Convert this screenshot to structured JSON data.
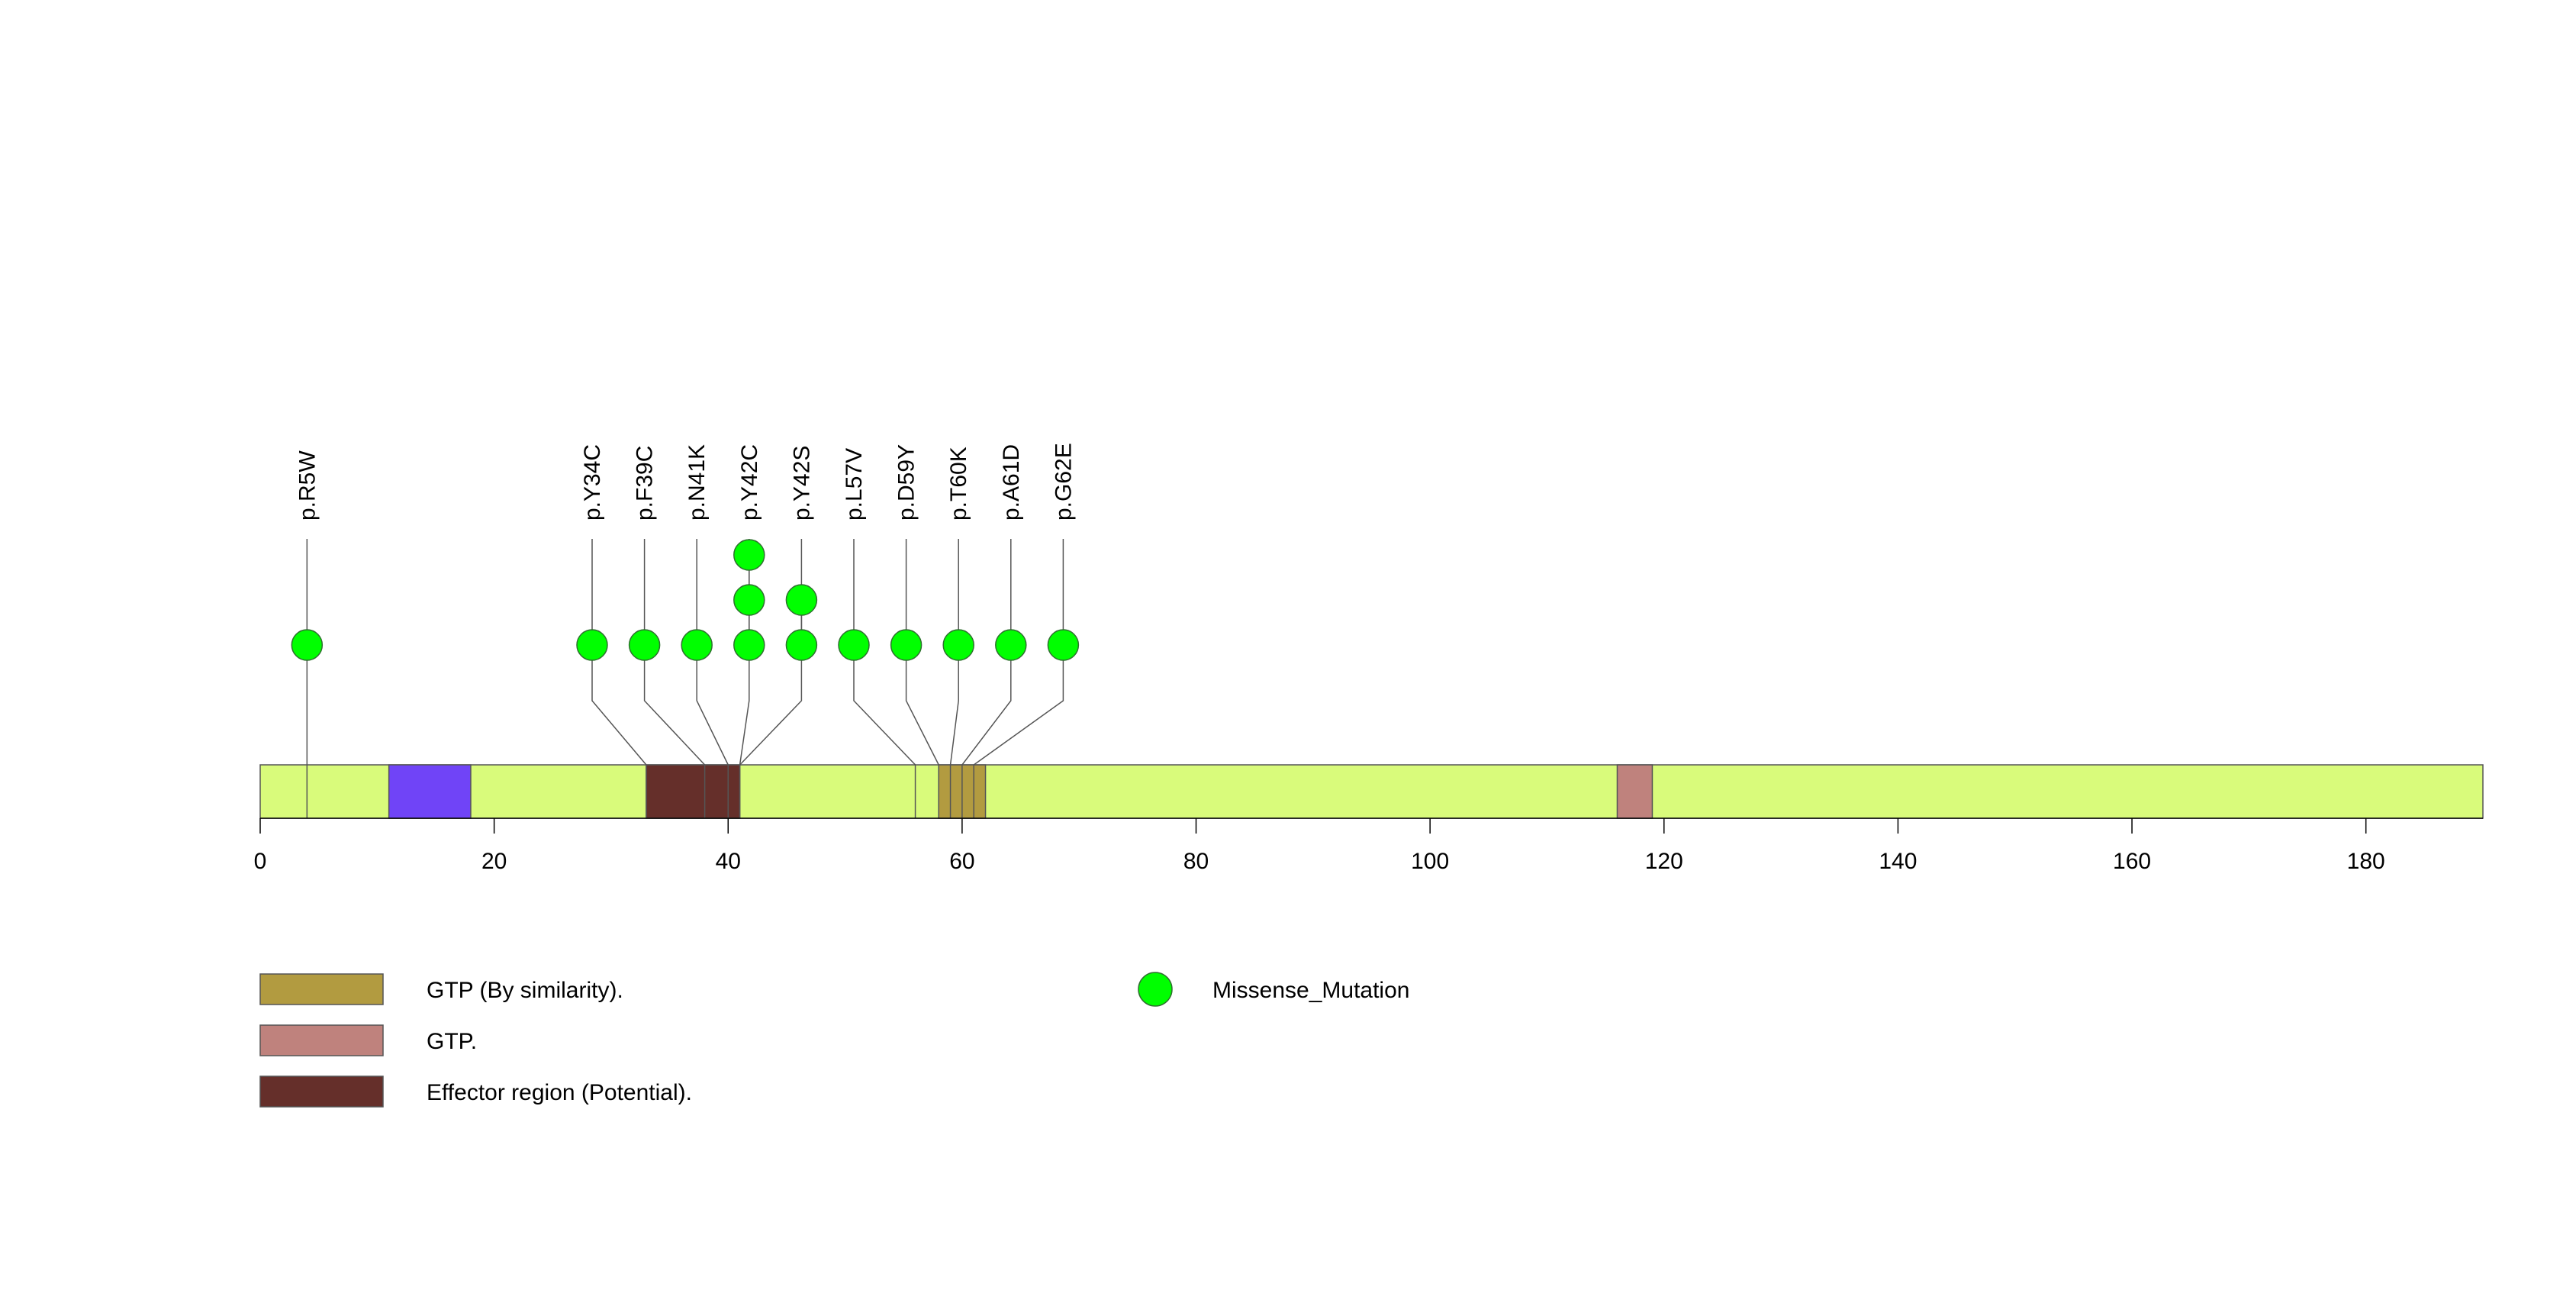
{
  "chart_data": {
    "type": "lollipop",
    "protein_length": 190,
    "axis": {
      "xlim": [
        0,
        190
      ],
      "ticks": [
        0,
        20,
        40,
        60,
        80,
        100,
        120,
        140,
        160,
        180
      ],
      "tick_labels": [
        "0",
        "20",
        "40",
        "60",
        "80",
        "100",
        "120",
        "140",
        "160",
        "180"
      ]
    },
    "backbone_color": "#d9fb7b",
    "domains": [
      {
        "start": 11,
        "end": 18,
        "color": "#7044f7",
        "label": ""
      },
      {
        "start": 33,
        "end": 41,
        "color": "#652f2a",
        "label": "Effector region (Potential)."
      },
      {
        "start": 58,
        "end": 62,
        "color": "#b29b40",
        "label": "GTP (By similarity)."
      },
      {
        "start": 116,
        "end": 119,
        "color": "#bf827d",
        "label": "GTP."
      }
    ],
    "site_lines": [
      4,
      33,
      38,
      40,
      41,
      56,
      58,
      59,
      60,
      61
    ],
    "mutations": [
      {
        "label": "p.R5W",
        "position": 4,
        "count": 1
      },
      {
        "label": "p.Y34C",
        "position": 33,
        "count": 1
      },
      {
        "label": "p.F39C",
        "position": 38,
        "count": 1
      },
      {
        "label": "p.N41K",
        "position": 40,
        "count": 1
      },
      {
        "label": "p.Y42C",
        "position": 41,
        "count": 3
      },
      {
        "label": "p.Y42S",
        "position": 41,
        "count": 2
      },
      {
        "label": "p.L57V",
        "position": 56,
        "count": 1
      },
      {
        "label": "p.D59Y",
        "position": 58,
        "count": 1
      },
      {
        "label": "p.T60K",
        "position": 59,
        "count": 1
      },
      {
        "label": "p.A61D",
        "position": 60,
        "count": 1
      },
      {
        "label": "p.G62E",
        "position": 61,
        "count": 1
      }
    ],
    "mutation_color": "#00ff00",
    "legend": {
      "domains": [
        {
          "label": "GTP (By similarity).",
          "color": "#b29b40"
        },
        {
          "label": "GTP.",
          "color": "#bf827d"
        },
        {
          "label": "Effector region (Potential).",
          "color": "#652f2a"
        }
      ],
      "mutation_types": [
        {
          "label": "Missense_Mutation",
          "color": "#00ff00"
        }
      ]
    }
  }
}
